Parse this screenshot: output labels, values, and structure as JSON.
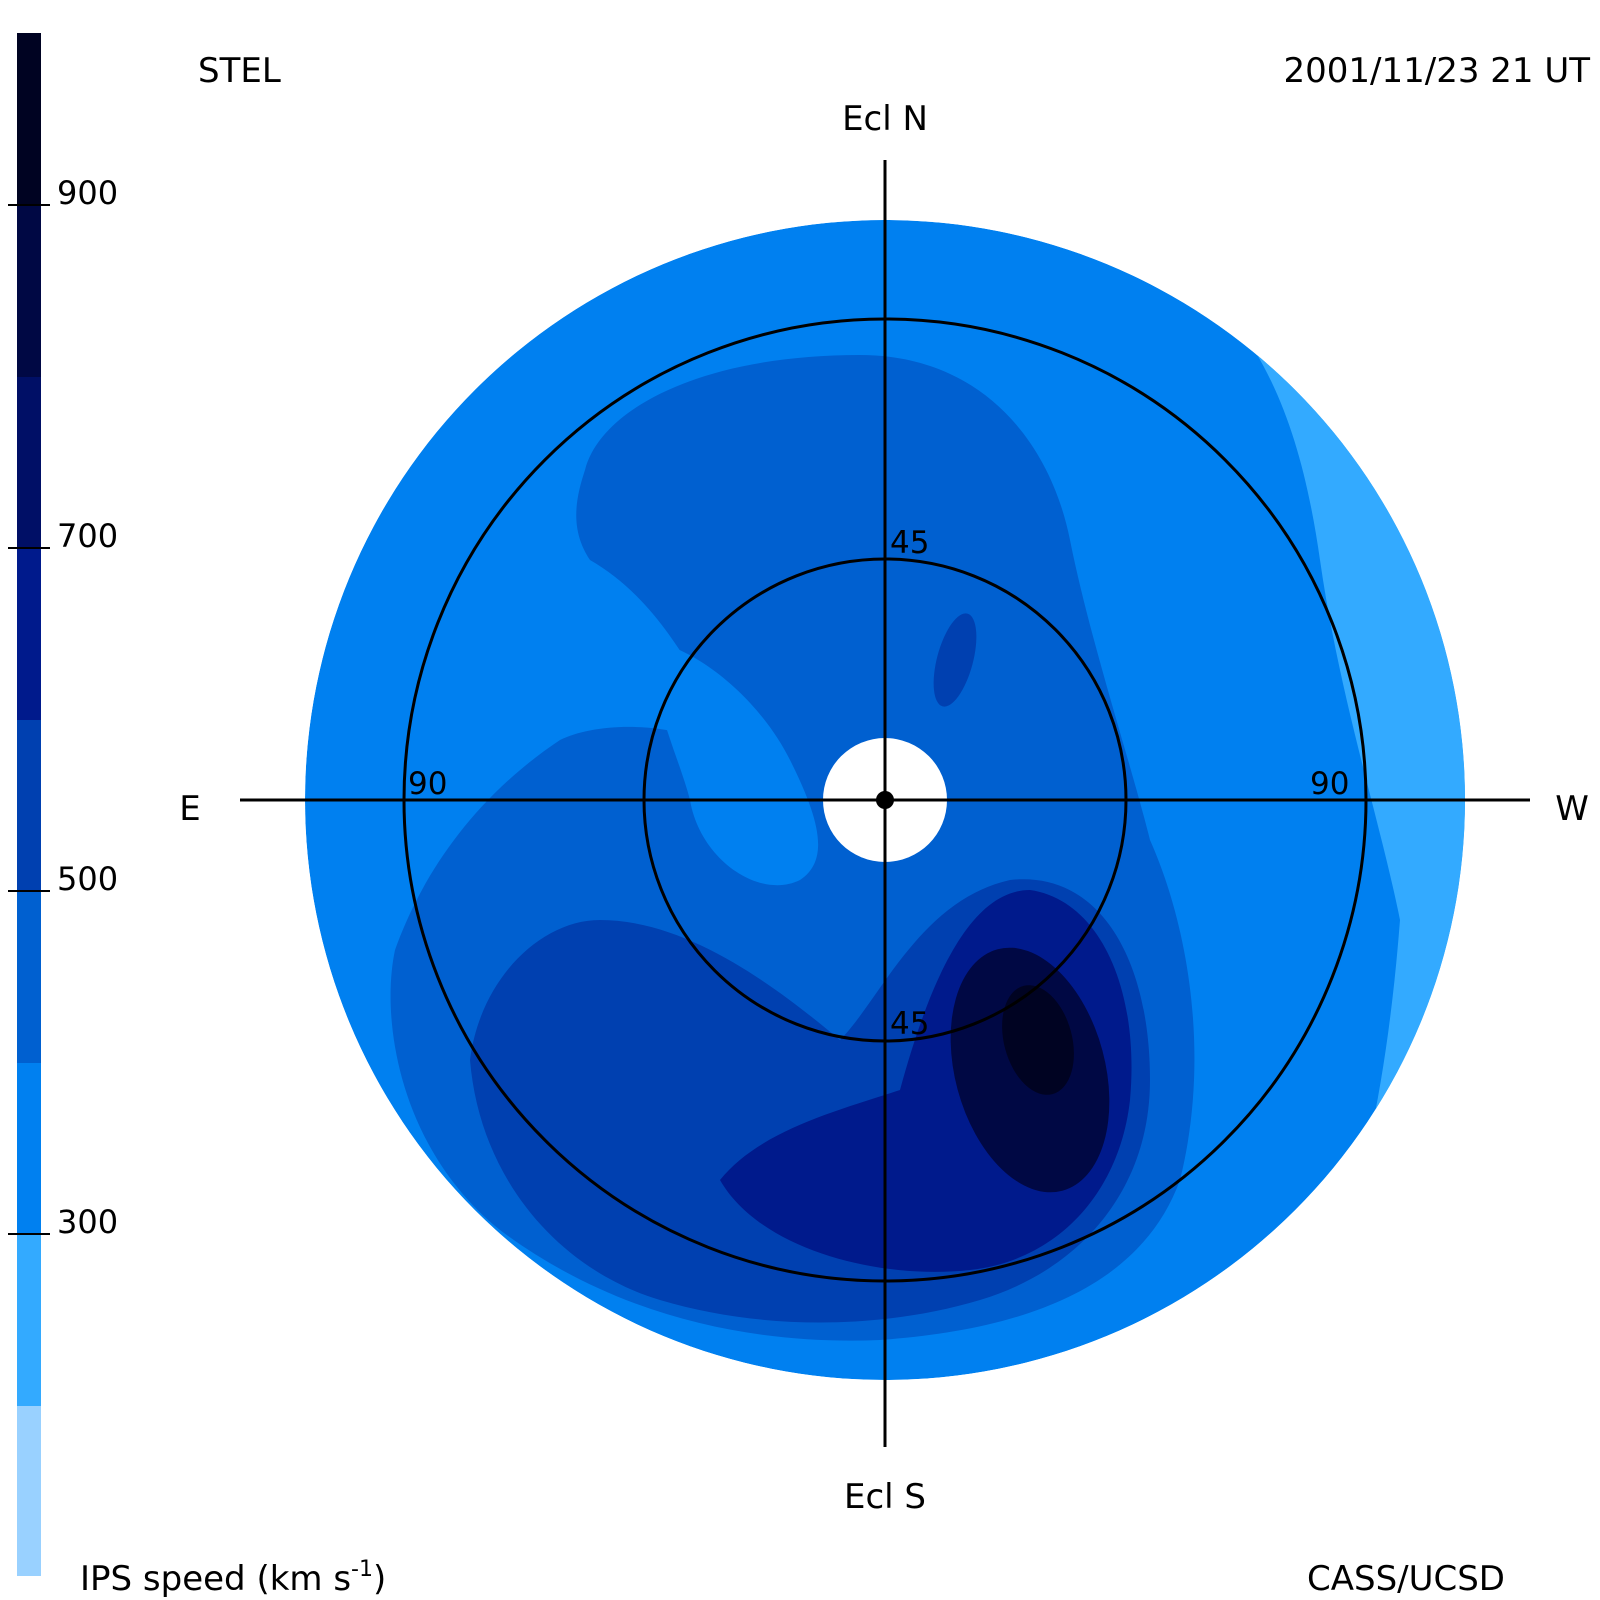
{
  "header": {
    "left_label": "STEL",
    "right_label": "2001/11/23 21 UT"
  },
  "footer": {
    "left_label": "IPS speed (km s",
    "left_exp": "-1",
    "left_close": ")",
    "right_label": "CASS/UCSD"
  },
  "compass": {
    "north": "Ecl N",
    "south": "Ecl S",
    "east": "E",
    "west": "W"
  },
  "rings": {
    "inner_label": "45",
    "inner_label_south": "45",
    "outer_label_east": "90",
    "outer_label_west": "90"
  },
  "colorbar": {
    "title": "IPS speed (km s-1)",
    "ticks": [
      "900",
      "700",
      "500",
      "300"
    ],
    "bins": [
      {
        "range": "< 200",
        "color": "#99d1ff"
      },
      {
        "range": "200-300",
        "color": "#33aaff"
      },
      {
        "range": "300-400",
        "color": "#0080f0"
      },
      {
        "range": "400-500",
        "color": "#0060d0"
      },
      {
        "range": "500-600",
        "color": "#0040b0"
      },
      {
        "range": "600-700",
        "color": "#001a8c"
      },
      {
        "range": "700-800",
        "color": "#000f66"
      },
      {
        "range": "800-900",
        "color": "#000844"
      },
      {
        "range": "> 900",
        "color": "#000322"
      }
    ]
  }
}
